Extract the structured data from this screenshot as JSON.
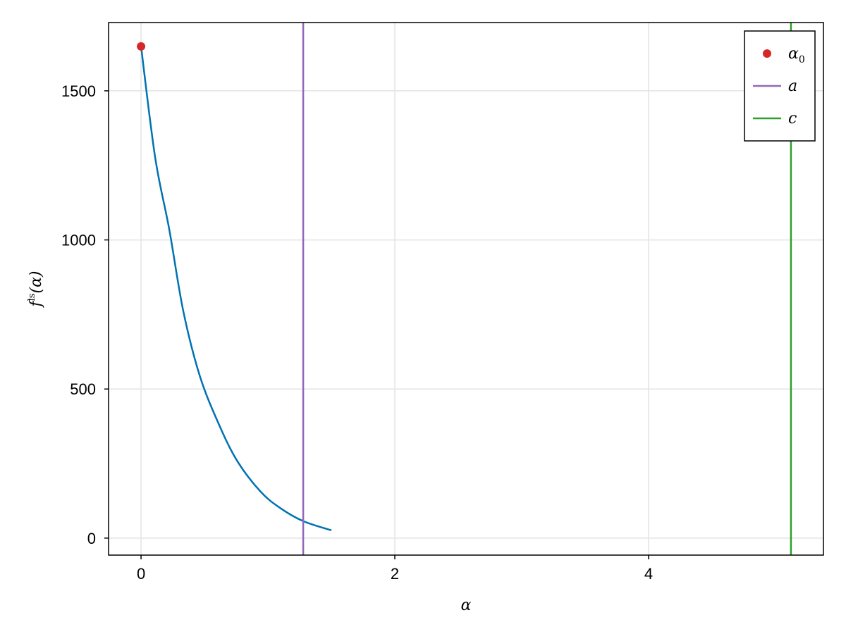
{
  "chart_data": {
    "type": "line",
    "title": "",
    "xlabel": "α",
    "ylabel": {
      "base": "f",
      "sup": "ls",
      "arg": "(α)"
    },
    "xlim": [
      -0.256,
      5.378
    ],
    "ylim": [
      -57,
      1729
    ],
    "x_ticks": [
      0,
      2,
      4
    ],
    "y_ticks": [
      0,
      500,
      1000,
      1500
    ],
    "grid": true,
    "legend_position": "top-right",
    "series": [
      {
        "kind": "line",
        "color": "#0072b2",
        "x": [
          0,
          0.111,
          0.222,
          0.333,
          0.463,
          0.611,
          0.759,
          0.944,
          1.1,
          1.278,
          1.5
        ],
        "y": [
          1649,
          1277,
          1036,
          761,
          544,
          384,
          258,
          155,
          100,
          57,
          26
        ]
      }
    ],
    "markers": [
      {
        "name": "α",
        "sub": "0",
        "kind": "point",
        "x": 0,
        "y": 1649,
        "color": "#d62728"
      }
    ],
    "vlines": [
      {
        "name": "a",
        "x": 1.278,
        "color": "#9467bd"
      },
      {
        "name": "c",
        "x": 5.122,
        "color": "#2ca02c"
      }
    ],
    "legend": [
      {
        "label": "α",
        "sub": "0",
        "kind": "point",
        "color": "#d62728"
      },
      {
        "label": "a",
        "sub": "",
        "kind": "line",
        "color": "#9467bd"
      },
      {
        "label": "c",
        "sub": "",
        "kind": "line",
        "color": "#2ca02c"
      }
    ]
  }
}
